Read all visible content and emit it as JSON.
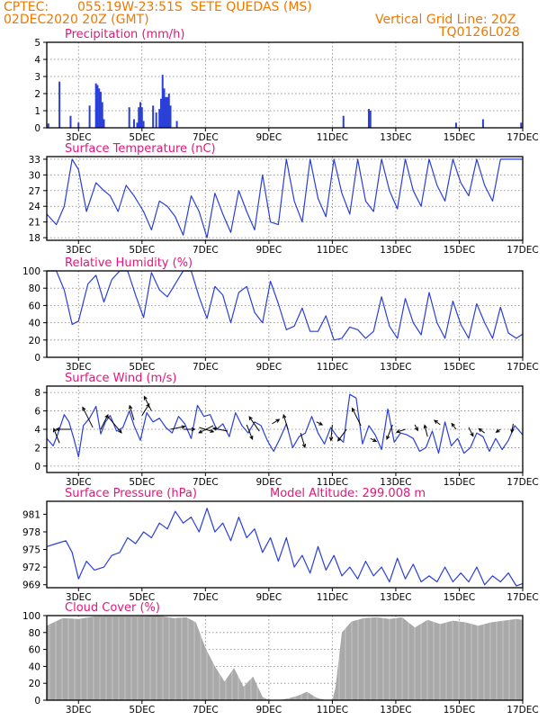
{
  "header": {
    "org": "CPTEC:",
    "location": "055:19W-23:51S  SETE QUEDAS (MS)",
    "run_time": "02DEC2020 20Z (GMT)",
    "grid_note": "Vertical Grid Line: 20Z",
    "model_code": "TQ0126L028"
  },
  "colors": {
    "header": "#f07800",
    "panel_title": "#e8147a",
    "series": "#2a3fd8",
    "cloud_fill": "#a9a9a9",
    "frame": "#000000",
    "grid": "#7f7f7f"
  },
  "x_axis": {
    "tick_labels": [
      "3DEC",
      "5DEC",
      "7DEC",
      "9DEC",
      "11DEC",
      "13DEC",
      "15DEC",
      "17DEC"
    ],
    "tick_days": [
      3,
      5,
      7,
      9,
      11,
      13,
      15,
      17
    ],
    "range_days": [
      2.0,
      17.0
    ]
  },
  "chart_data": [
    {
      "id": "precip",
      "type": "bar",
      "title": "Precipitation (mm/h)",
      "ylim": [
        0,
        5
      ],
      "yticks": [
        0,
        1,
        2,
        3,
        4,
        5
      ],
      "grid": true,
      "x": [
        2.05,
        2.4,
        2.75,
        3.0,
        3.35,
        3.55,
        3.6,
        3.65,
        3.7,
        3.75,
        3.8,
        4.6,
        4.75,
        4.85,
        4.9,
        4.95,
        5.0,
        5.05,
        5.35,
        5.45,
        5.55,
        5.6,
        5.65,
        5.7,
        5.75,
        5.8,
        5.85,
        5.9,
        6.1,
        11.35,
        12.15,
        12.2,
        14.9,
        15.75,
        16.95
      ],
      "values": [
        0.25,
        2.7,
        0.7,
        0.3,
        1.3,
        2.6,
        2.5,
        2.3,
        2.1,
        1.5,
        0.5,
        1.2,
        0.5,
        0.3,
        1.2,
        1.5,
        1.2,
        0.4,
        1.3,
        0.9,
        1.1,
        1.7,
        3.1,
        2.3,
        1.8,
        1.8,
        2.0,
        1.3,
        0.4,
        0.7,
        1.1,
        1.0,
        0.3,
        0.5,
        0.3
      ]
    },
    {
      "id": "temp",
      "type": "line",
      "title": "Surface Temperature (nC)",
      "ylim": [
        17.5,
        33.5
      ],
      "yticks": [
        18,
        21,
        24,
        27,
        30,
        33
      ],
      "grid": true,
      "x": [
        2.0,
        2.3,
        2.55,
        2.8,
        3.0,
        3.25,
        3.55,
        3.8,
        4.0,
        4.25,
        4.5,
        4.75,
        5.05,
        5.3,
        5.55,
        5.8,
        6.05,
        6.3,
        6.55,
        6.8,
        7.05,
        7.3,
        7.55,
        7.8,
        8.05,
        8.3,
        8.55,
        8.8,
        9.05,
        9.3,
        9.55,
        9.8,
        10.05,
        10.3,
        10.55,
        10.8,
        11.05,
        11.3,
        11.55,
        11.8,
        12.05,
        12.3,
        12.55,
        12.8,
        13.05,
        13.3,
        13.55,
        13.8,
        14.05,
        14.3,
        14.55,
        14.8,
        15.05,
        15.3,
        15.55,
        15.8,
        16.05,
        16.3,
        16.55,
        16.8,
        17.0
      ],
      "values": [
        22.5,
        20.5,
        24,
        33,
        31,
        23,
        28.5,
        27,
        26,
        23,
        28,
        26,
        23,
        19.5,
        25,
        24,
        22,
        18.5,
        26,
        23,
        18,
        26.5,
        22.5,
        19,
        27,
        23,
        19.5,
        30,
        21,
        20.5,
        33,
        25,
        21,
        33,
        25.5,
        22,
        33,
        26.5,
        22.5,
        33,
        25,
        23,
        33,
        27,
        23.5,
        33,
        27,
        24,
        33,
        28,
        25,
        33,
        28.5,
        26,
        33,
        28,
        25,
        33,
        33,
        33,
        33
      ],
      "name": ""
    },
    {
      "id": "rh",
      "type": "line",
      "title": "Relative Humidity (%)",
      "ylim": [
        0,
        100
      ],
      "yticks": [
        0,
        20,
        40,
        60,
        80,
        100
      ],
      "grid": true,
      "x": [
        2.0,
        2.3,
        2.55,
        2.8,
        3.0,
        3.3,
        3.55,
        3.8,
        4.05,
        4.3,
        4.55,
        4.8,
        5.05,
        5.3,
        5.55,
        5.8,
        6.05,
        6.3,
        6.55,
        6.8,
        7.05,
        7.3,
        7.55,
        7.8,
        8.05,
        8.3,
        8.55,
        8.8,
        9.05,
        9.3,
        9.55,
        9.8,
        10.05,
        10.3,
        10.55,
        10.8,
        11.05,
        11.3,
        11.55,
        11.8,
        12.05,
        12.3,
        12.55,
        12.8,
        13.05,
        13.3,
        13.55,
        13.8,
        14.05,
        14.3,
        14.55,
        14.8,
        15.05,
        15.3,
        15.55,
        15.8,
        16.05,
        16.3,
        16.55,
        16.8,
        17.0
      ],
      "values": [
        100,
        100,
        78,
        38,
        42,
        85,
        95,
        64,
        90,
        100,
        100,
        72,
        46,
        98,
        78,
        70,
        85,
        100,
        100,
        70,
        45,
        82,
        72,
        40,
        75,
        82,
        52,
        40,
        88,
        62,
        32,
        36,
        57,
        30,
        30,
        48,
        20,
        22,
        35,
        32,
        22,
        30,
        70,
        36,
        22,
        68,
        40,
        26,
        75,
        40,
        22,
        65,
        38,
        22,
        62,
        40,
        22,
        58,
        28,
        22,
        27
      ]
    },
    {
      "id": "wind",
      "type": "line",
      "title": "Surface Wind (m/s)",
      "ylim": [
        -0.7,
        8.7
      ],
      "yticks": [
        0,
        2,
        4,
        6,
        8
      ],
      "grid": true,
      "x": [
        2.0,
        2.2,
        2.35,
        2.55,
        2.7,
        2.85,
        3.0,
        3.15,
        3.35,
        3.55,
        3.7,
        3.85,
        4.0,
        4.2,
        4.4,
        4.6,
        4.75,
        4.95,
        5.15,
        5.35,
        5.55,
        5.75,
        5.95,
        6.15,
        6.35,
        6.55,
        6.75,
        6.95,
        7.15,
        7.35,
        7.55,
        7.75,
        7.95,
        8.15,
        8.35,
        8.55,
        8.75,
        8.95,
        9.15,
        9.35,
        9.55,
        9.75,
        9.95,
        10.15,
        10.35,
        10.55,
        10.75,
        10.95,
        11.15,
        11.35,
        11.55,
        11.75,
        11.95,
        12.15,
        12.35,
        12.55,
        12.75,
        12.95,
        13.15,
        13.35,
        13.55,
        13.75,
        13.95,
        14.15,
        14.35,
        14.55,
        14.75,
        14.95,
        15.15,
        15.35,
        15.55,
        15.75,
        15.95,
        16.15,
        16.35,
        16.55,
        16.75,
        17.0
      ],
      "values": [
        3.0,
        2.2,
        3.5,
        5.6,
        4.8,
        3.0,
        1.0,
        4.4,
        5.2,
        6.5,
        3.5,
        4.8,
        5.5,
        3.8,
        4.2,
        6.0,
        4.4,
        2.8,
        5.8,
        4.8,
        5.2,
        4.2,
        3.6,
        5.4,
        4.6,
        3.0,
        6.6,
        5.4,
        5.6,
        4.0,
        4.6,
        3.2,
        5.8,
        4.4,
        3.6,
        4.8,
        4.4,
        2.8,
        1.6,
        3.0,
        4.6,
        2.0,
        3.2,
        3.6,
        5.4,
        3.6,
        2.4,
        4.2,
        3.2,
        2.6,
        7.8,
        7.4,
        2.4,
        4.4,
        3.4,
        1.8,
        6.2,
        2.6,
        3.6,
        3.4,
        3.0,
        1.6,
        2.0,
        3.8,
        1.4,
        4.8,
        2.2,
        3.0,
        1.4,
        2.0,
        3.6,
        3.2,
        1.6,
        3.0,
        1.8,
        2.8,
        4.4,
        3.4
      ],
      "arrows": {
        "x": [
          2.4,
          2.75,
          3.45,
          3.7,
          3.9,
          4.75,
          5.0,
          5.3,
          5.9,
          6.3,
          6.8,
          7.25,
          7.7,
          8.3,
          8.7,
          9.1,
          9.6,
          10.0,
          10.5,
          11.0,
          11.45,
          11.9,
          12.2,
          12.9,
          13.3,
          13.6,
          14.0,
          14.4,
          14.9,
          15.3,
          15.8,
          16.3,
          16.7
        ],
        "value_y": [
          2.5,
          4.0,
          4.2,
          4.0,
          5.5,
          5.0,
          5.5,
          6.0,
          4.0,
          4.0,
          4.2,
          4.4,
          3.8,
          4.5,
          3.8,
          4.6,
          4.0,
          3.6,
          4.8,
          4.5,
          4.0,
          4.4,
          3.0,
          4.5,
          4.0,
          4.5,
          3.2,
          4.5,
          4.0,
          4.2,
          3.6,
          4.0,
          4.6
        ],
        "u": [
          -0.4,
          -1.0,
          -0.7,
          0.5,
          1.0,
          -0.3,
          0.5,
          -0.5,
          1.0,
          0.8,
          1.0,
          -1.0,
          -1.0,
          0.4,
          -0.7,
          0.5,
          -0.3,
          0.3,
          0.4,
          -0.1,
          -0.6,
          -0.6,
          0.4,
          -0.4,
          -0.6,
          0.2,
          -0.2,
          -0.4,
          -0.3,
          0.3,
          -0.4,
          -0.3,
          -0.1
        ],
        "v": [
          1.0,
          0.0,
          1.4,
          1.0,
          -1.2,
          1.0,
          0.8,
          1.0,
          0.2,
          0.0,
          -0.3,
          -0.5,
          0.2,
          -1.0,
          1.0,
          0.3,
          1.0,
          -1.0,
          -0.2,
          -1.1,
          -0.8,
          1.2,
          -0.2,
          -1.0,
          -0.2,
          -0.4,
          0.8,
          0.3,
          0.4,
          -0.6,
          0.3,
          -0.2,
          -0.6
        ]
      }
    },
    {
      "id": "pres",
      "type": "line",
      "title": "Surface Pressure (hPa)",
      "note": "Model Altitude: 299.008 m",
      "ylim": [
        968.5,
        983.2
      ],
      "yticks": [
        969,
        972,
        975,
        978,
        981
      ],
      "grid": false,
      "x": [
        2.0,
        2.3,
        2.6,
        2.8,
        3.0,
        3.25,
        3.5,
        3.8,
        4.05,
        4.3,
        4.55,
        4.8,
        5.05,
        5.3,
        5.55,
        5.8,
        6.05,
        6.3,
        6.55,
        6.8,
        7.05,
        7.3,
        7.55,
        7.8,
        8.05,
        8.3,
        8.55,
        8.8,
        9.05,
        9.3,
        9.55,
        9.8,
        10.05,
        10.3,
        10.55,
        10.8,
        11.05,
        11.3,
        11.55,
        11.8,
        12.05,
        12.3,
        12.55,
        12.8,
        13.05,
        13.3,
        13.55,
        13.8,
        14.05,
        14.3,
        14.55,
        14.8,
        15.05,
        15.3,
        15.55,
        15.8,
        16.05,
        16.3,
        16.55,
        16.8,
        17.0
      ],
      "values": [
        975.5,
        976.0,
        976.5,
        974.5,
        970.0,
        973.0,
        971.5,
        972.0,
        974.0,
        974.5,
        977.0,
        976.0,
        978.0,
        977.0,
        979.5,
        978.5,
        981.5,
        979.5,
        980.5,
        978.0,
        982.0,
        978.0,
        979.5,
        976.5,
        980.5,
        977.0,
        978.5,
        974.5,
        977.0,
        973.0,
        977.0,
        972.0,
        974.0,
        971.0,
        975.5,
        971.5,
        974.0,
        970.5,
        972.0,
        970.0,
        973.0,
        970.5,
        972.0,
        969.5,
        973.5,
        970.0,
        972.5,
        969.5,
        970.5,
        969.5,
        972.0,
        969.5,
        971.0,
        969.5,
        972.0,
        969.0,
        970.5,
        969.5,
        971.0,
        968.8,
        969.2
      ]
    },
    {
      "id": "cloud",
      "type": "area",
      "title": "Cloud Cover (%)",
      "ylim": [
        0,
        100
      ],
      "yticks": [
        0,
        20,
        40,
        60,
        80,
        100
      ],
      "grid": true,
      "x": [
        2.0,
        2.5,
        3.0,
        3.5,
        4.0,
        4.5,
        5.0,
        5.5,
        6.0,
        6.4,
        6.7,
        7.0,
        7.3,
        7.6,
        7.9,
        8.2,
        8.5,
        8.8,
        9.0,
        9.3,
        9.6,
        9.9,
        10.2,
        10.5,
        10.8,
        11.0,
        11.1,
        11.3,
        11.6,
        12.0,
        12.4,
        12.8,
        13.2,
        13.6,
        14.0,
        14.4,
        14.8,
        15.2,
        15.6,
        16.0,
        16.4,
        16.8,
        17.0
      ],
      "values": [
        88,
        97,
        96,
        99,
        99,
        99,
        99,
        100,
        97,
        98,
        92,
        62,
        40,
        22,
        38,
        16,
        28,
        4,
        0,
        0,
        2,
        5,
        10,
        3,
        0,
        0,
        15,
        80,
        93,
        97,
        98,
        96,
        98,
        86,
        95,
        90,
        94,
        92,
        88,
        92,
        94,
        96,
        95
      ]
    }
  ]
}
